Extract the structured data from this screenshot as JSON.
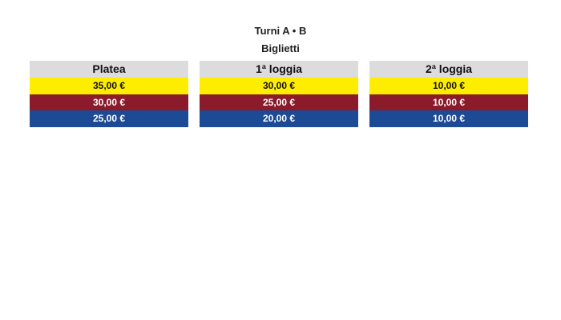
{
  "header": {
    "turni": "Turni A • B",
    "biglietti": "Biglietti"
  },
  "colors": {
    "header_bg": "#dcdcdc",
    "tiers": [
      "#ffed00",
      "#8b1a2b",
      "#1c4a94"
    ]
  },
  "sections": [
    {
      "name": "Platea",
      "prices": [
        "35,00 €",
        "30,00 €",
        "25,00 €"
      ]
    },
    {
      "name": "1ª loggia",
      "prices": [
        "30,00 €",
        "25,00 €",
        "20,00 €"
      ]
    },
    {
      "name": "2ª loggia",
      "prices": [
        "10,00 €",
        "10,00 €",
        "10,00 €"
      ]
    }
  ]
}
